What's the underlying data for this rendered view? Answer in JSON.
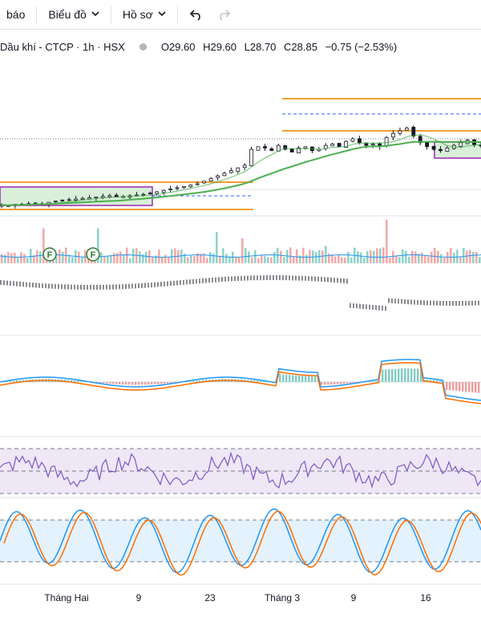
{
  "toolbar": {
    "alerts_label": "báo",
    "chart_type_label": "Biểu đồ",
    "profile_label": "Hồ sơ"
  },
  "legend": {
    "symbol_text": "Dầu khí - CTCP · 1h · HSX",
    "open": "O29.60",
    "high": "H29.60",
    "low": "L28.70",
    "close": "C28.85",
    "change": "−0.75 (−2.53%)"
  },
  "colors": {
    "up": "#26a69a",
    "down": "#ef5350",
    "ma": "#4caf50",
    "level": "#f0a030",
    "macd": "#2196f3",
    "signal": "#ff6d00",
    "rsi": "#7e57c2",
    "stoch_k": "#2196f3",
    "stoch_d": "#ff6d00",
    "zone_border": "#9c27b0"
  },
  "icons": {
    "undo": "undo-icon",
    "redo": "redo-icon",
    "dividend_marker": "F"
  },
  "x_axis": [
    "Tháng Hai",
    "9",
    "23",
    "Tháng 3",
    "9",
    "16"
  ],
  "chart_data": {
    "type": "candlestick",
    "panes": [
      "price",
      "volume",
      "macd",
      "rsi",
      "stochastic"
    ],
    "price_series": [
      24.4,
      24.35,
      24.45,
      24.4,
      24.5,
      24.55,
      24.5,
      24.6,
      24.7,
      24.75,
      24.8,
      24.85,
      24.9,
      24.95,
      25.0,
      25.05,
      25.1,
      25.0,
      25.05,
      25.1,
      25.15,
      25.2,
      25.3,
      25.4,
      25.5,
      25.6,
      25.7,
      25.8,
      25.9,
      26.0,
      26.2,
      26.4,
      26.6,
      26.8,
      27.0,
      27.2,
      27.4,
      28.6,
      28.8,
      28.7,
      28.5,
      28.9,
      28.6,
      28.4,
      28.7,
      28.8,
      28.5,
      28.6,
      28.9,
      29.0,
      28.8,
      29.2,
      29.4,
      29.1,
      28.9,
      29.0,
      28.8,
      29.5,
      29.8,
      30.0,
      30.2,
      29.6,
      29.1,
      28.8,
      28.6,
      28.5,
      28.7,
      28.9,
      29.1,
      29.3,
      28.95,
      28.85
    ],
    "dividend_markers": 2,
    "annotations": [
      "support/resistance levels",
      "demand zones",
      "moving average"
    ]
  }
}
